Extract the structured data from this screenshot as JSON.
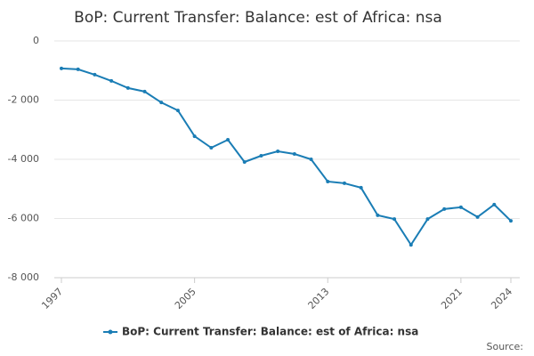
{
  "chart_data": {
    "type": "line",
    "title": "BoP: Current Transfer: Balance: est of Africa: nsa",
    "source": "Source:",
    "x": [
      1997,
      1998,
      1999,
      2000,
      2001,
      2002,
      2003,
      2004,
      2005,
      2006,
      2007,
      2008,
      2009,
      2010,
      2011,
      2012,
      2013,
      2014,
      2015,
      2016,
      2017,
      2018,
      2019,
      2020,
      2021,
      2022,
      2023,
      2024
    ],
    "series": [
      {
        "name": "BoP: Current Transfer: Balance: est of Africa: nsa",
        "color": "#1a7db5",
        "values": [
          -930,
          -960,
          -1140,
          -1350,
          -1590,
          -1710,
          -2080,
          -2350,
          -3220,
          -3610,
          -3340,
          -4090,
          -3880,
          -3730,
          -3820,
          -4000,
          -4750,
          -4810,
          -4960,
          -5890,
          -6020,
          -6890,
          -6020,
          -5680,
          -5620,
          -5950,
          -5530,
          -6080
        ]
      }
    ],
    "xlim": [
      1997,
      2024
    ],
    "xticks": [
      1997,
      2005,
      2013,
      2021,
      2024
    ],
    "ylim": [
      -8000,
      0
    ],
    "yticks": [
      {
        "value": 0,
        "label": "0"
      },
      {
        "value": -2000,
        "label": "-2 000"
      },
      {
        "value": -4000,
        "label": "-4 000"
      },
      {
        "value": -6000,
        "label": "-6 000"
      },
      {
        "value": -8000,
        "label": "-8 000"
      }
    ],
    "grid": true
  }
}
